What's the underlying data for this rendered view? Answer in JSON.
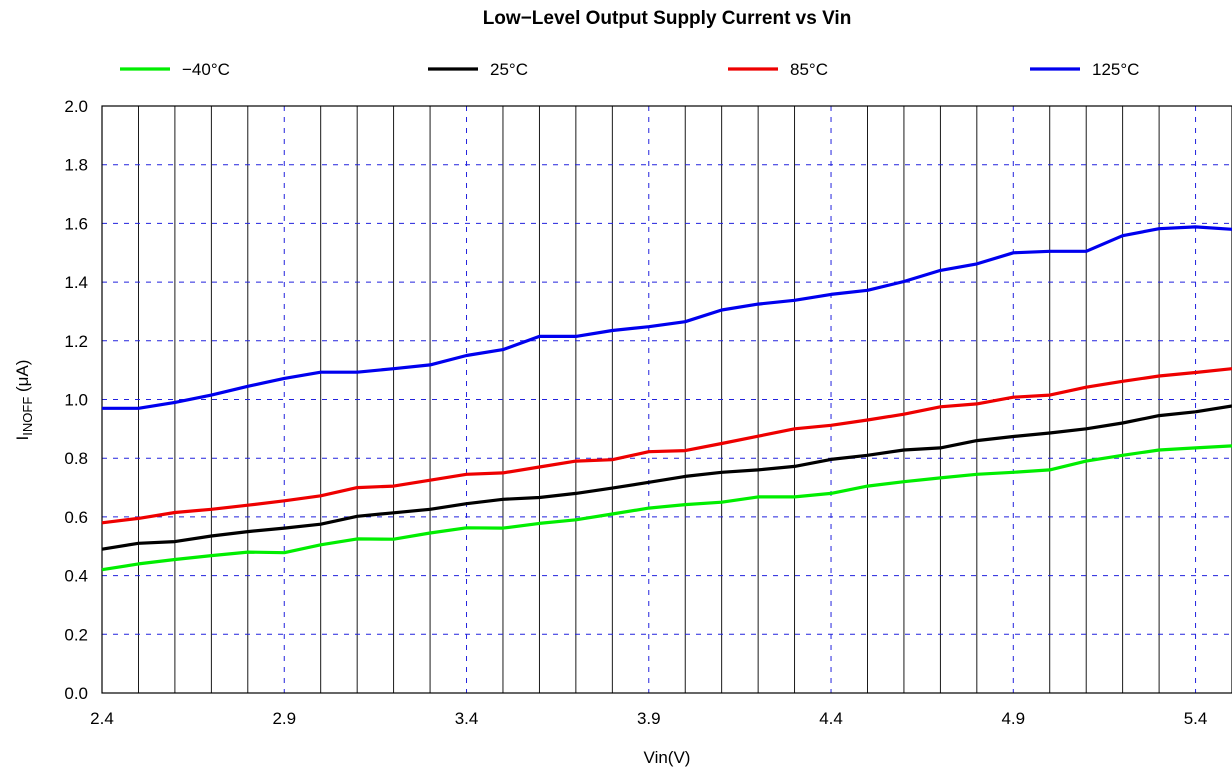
{
  "chart_data": {
    "type": "line",
    "title": "Low−Level Output Supply Current vs Vin",
    "xlabel": "Vin(V)",
    "ylabel": {
      "main": "I",
      "sub": "INOFF",
      "rest": " (μA)"
    },
    "xlim": [
      2.4,
      5.5
    ],
    "ylim": [
      0,
      2.0
    ],
    "xticks": [
      2.4,
      2.9,
      3.4,
      3.9,
      4.4,
      4.9,
      5.4
    ],
    "xtick_labels": [
      "2.4",
      "2.9",
      "3.4",
      "3.9",
      "4.4",
      "4.9",
      "5.4"
    ],
    "yticks": [
      0,
      0.2,
      0.4,
      0.6,
      0.8,
      1.0,
      1.2,
      1.4,
      1.6,
      1.8,
      2.0
    ],
    "ytick_labels": [
      "0.0",
      "0.2",
      "0.4",
      "0.6",
      "0.8",
      "1.0",
      "1.2",
      "1.4",
      "1.6",
      "1.8",
      "2.0"
    ],
    "grid": true,
    "legend_position": "top",
    "x": [
      2.4,
      2.5,
      2.6,
      2.7,
      2.8,
      2.9,
      3.0,
      3.1,
      3.2,
      3.3,
      3.4,
      3.5,
      3.6,
      3.7,
      3.8,
      3.9,
      4.0,
      4.1,
      4.2,
      4.3,
      4.4,
      4.5,
      4.6,
      4.7,
      4.8,
      4.9,
      5.0,
      5.1,
      5.2,
      5.3,
      5.4,
      5.5
    ],
    "series": [
      {
        "name": "−40°C",
        "color": "#00ee00",
        "values": [
          0.42,
          0.44,
          0.455,
          0.468,
          0.48,
          0.478,
          0.505,
          0.525,
          0.524,
          0.545,
          0.563,
          0.562,
          0.578,
          0.59,
          0.61,
          0.63,
          0.642,
          0.65,
          0.668,
          0.668,
          0.68,
          0.705,
          0.72,
          0.733,
          0.745,
          0.752,
          0.76,
          0.79,
          0.81,
          0.828,
          0.835,
          0.842
        ]
      },
      {
        "name": "25°C",
        "color": "#000000",
        "values": [
          0.49,
          0.51,
          0.516,
          0.535,
          0.55,
          0.562,
          0.575,
          0.602,
          0.614,
          0.626,
          0.645,
          0.66,
          0.666,
          0.68,
          0.698,
          0.718,
          0.738,
          0.752,
          0.76,
          0.772,
          0.796,
          0.81,
          0.828,
          0.835,
          0.86,
          0.874,
          0.886,
          0.9,
          0.92,
          0.945,
          0.958,
          0.978
        ]
      },
      {
        "name": "85°C",
        "color": "#ee0000",
        "values": [
          0.58,
          0.595,
          0.615,
          0.626,
          0.64,
          0.655,
          0.672,
          0.7,
          0.705,
          0.725,
          0.745,
          0.75,
          0.77,
          0.79,
          0.795,
          0.822,
          0.826,
          0.85,
          0.875,
          0.9,
          0.912,
          0.93,
          0.95,
          0.975,
          0.985,
          1.008,
          1.015,
          1.042,
          1.062,
          1.08,
          1.092,
          1.105
        ]
      },
      {
        "name": "125°C",
        "color": "#0000ee",
        "values": [
          0.97,
          0.97,
          0.99,
          1.015,
          1.045,
          1.072,
          1.093,
          1.093,
          1.105,
          1.118,
          1.15,
          1.17,
          1.215,
          1.215,
          1.235,
          1.248,
          1.265,
          1.305,
          1.325,
          1.338,
          1.358,
          1.372,
          1.402,
          1.44,
          1.462,
          1.5,
          1.505,
          1.505,
          1.558,
          1.582,
          1.588,
          1.58
        ]
      }
    ]
  }
}
